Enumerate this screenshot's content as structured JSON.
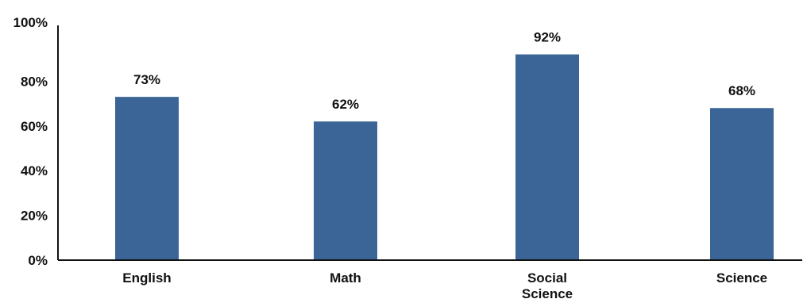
{
  "chart_data": {
    "type": "bar",
    "title": "",
    "xlabel": "",
    "ylabel": "",
    "categories": [
      [
        "English"
      ],
      [
        "Math"
      ],
      [
        "Social",
        "Science"
      ],
      [
        "Science"
      ]
    ],
    "values": [
      73,
      62,
      92,
      68
    ],
    "data_labels": [
      "73%",
      "62%",
      "92%",
      "68%"
    ],
    "ylim": [
      0,
      100
    ],
    "yticks": [
      0,
      20,
      40,
      60,
      80,
      100
    ],
    "ytick_labels": [
      "0%",
      "20%",
      "40%",
      "60%",
      "80%",
      "100%"
    ],
    "grid": false,
    "legend": "none",
    "bar_color": "#3a6596",
    "axis_color": "#111111"
  }
}
